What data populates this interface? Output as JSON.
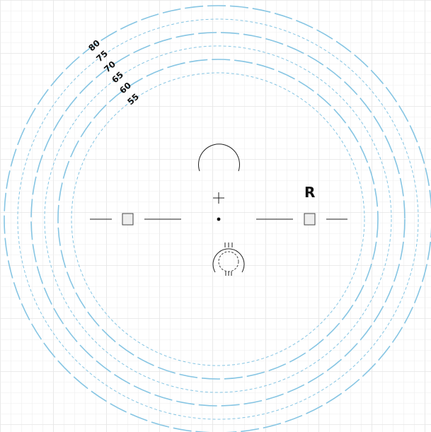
{
  "diagram": {
    "ring_labels": [
      "80",
      "75",
      "70",
      "65",
      "60",
      "55"
    ],
    "side_label": "R",
    "colors": {
      "ring": "#86c5e3",
      "grid": "#eeeeee",
      "marks": "#222222",
      "square_fill": "#eeeeee"
    },
    "icons": {
      "top": "open-arc-icon",
      "center": "crosshair-icon",
      "bottom": "knob-icon"
    }
  }
}
